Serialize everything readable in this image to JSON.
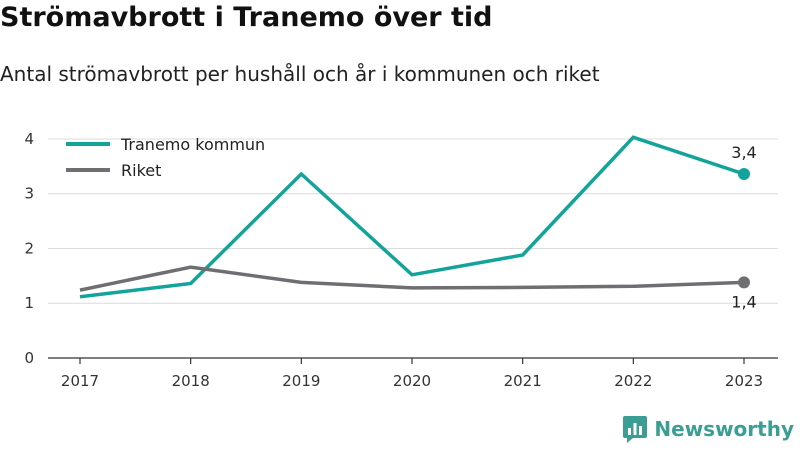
{
  "header": {
    "title": "Strömavbrott i Tranemo över tid",
    "subtitle": "Antal strömavbrott per hushåll och år i kommunen och riket"
  },
  "brand": {
    "name": "Newsworthy",
    "icon": "newsworthy-logo-icon",
    "color": "#3a9e95"
  },
  "chart_data": {
    "type": "line",
    "x": [
      "2017",
      "2018",
      "2019",
      "2020",
      "2021",
      "2022",
      "2023"
    ],
    "ylim": [
      0,
      4.2
    ],
    "yticks": [
      0,
      1,
      2,
      3,
      4
    ],
    "grid": true,
    "legend_position": "top-left",
    "series": [
      {
        "name": "Tranemo kommun",
        "color": "#12a39a",
        "values": [
          1.12,
          1.36,
          3.36,
          1.52,
          1.88,
          4.03,
          3.36
        ],
        "end_label": "3,4"
      },
      {
        "name": "Riket",
        "color": "#6e6e73",
        "values": [
          1.24,
          1.66,
          1.38,
          1.28,
          1.29,
          1.31,
          1.38
        ],
        "end_label": "1,4"
      }
    ]
  }
}
